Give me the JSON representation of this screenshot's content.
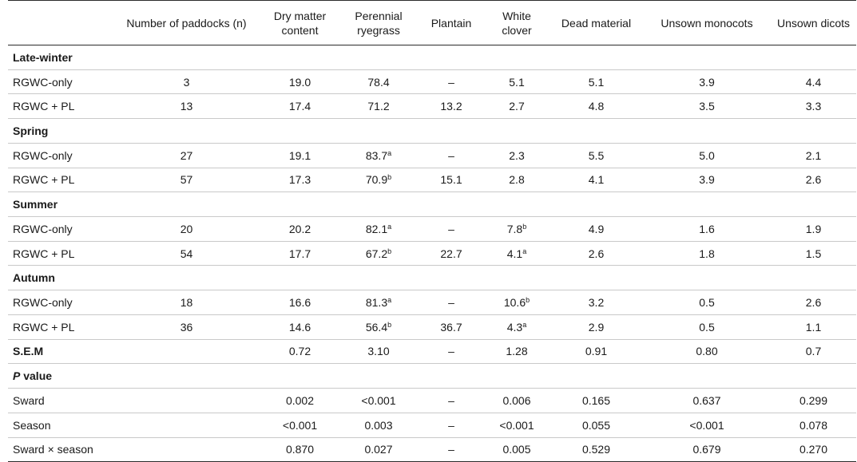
{
  "columns": [
    "",
    "Number of paddocks (n)",
    "Dry matter content",
    "Perennial ryegrass",
    "Plantain",
    "White clover",
    "Dead material",
    "Unsown monocots",
    "Unsown dicots"
  ],
  "sections": [
    {
      "title": "Late-winter",
      "rows": [
        {
          "label": "RGWC-only",
          "n": "3",
          "dm": "19.0",
          "prg": "78.4",
          "prg_sup": "",
          "pl": "–",
          "wc": "5.1",
          "wc_sup": "",
          "dead": "5.1",
          "umono": "3.9",
          "udicot": "4.4"
        },
        {
          "label": "RGWC + PL",
          "n": "13",
          "dm": "17.4",
          "prg": "71.2",
          "prg_sup": "",
          "pl": "13.2",
          "wc": "2.7",
          "wc_sup": "",
          "dead": "4.8",
          "umono": "3.5",
          "udicot": "3.3"
        }
      ]
    },
    {
      "title": "Spring",
      "rows": [
        {
          "label": "RGWC-only",
          "n": "27",
          "dm": "19.1",
          "prg": "83.7",
          "prg_sup": "a",
          "pl": "–",
          "wc": "2.3",
          "wc_sup": "",
          "dead": "5.5",
          "umono": "5.0",
          "udicot": "2.1"
        },
        {
          "label": "RGWC + PL",
          "n": "57",
          "dm": "17.3",
          "prg": "70.9",
          "prg_sup": "b",
          "pl": "15.1",
          "wc": "2.8",
          "wc_sup": "",
          "dead": "4.1",
          "umono": "3.9",
          "udicot": "2.6"
        }
      ]
    },
    {
      "title": "Summer",
      "rows": [
        {
          "label": "RGWC-only",
          "n": "20",
          "dm": "20.2",
          "prg": "82.1",
          "prg_sup": "a",
          "pl": "–",
          "wc": "7.8",
          "wc_sup": "b",
          "dead": "4.9",
          "umono": "1.6",
          "udicot": "1.9"
        },
        {
          "label": "RGWC + PL",
          "n": "54",
          "dm": "17.7",
          "prg": "67.2",
          "prg_sup": "b",
          "pl": "22.7",
          "wc": "4.1",
          "wc_sup": "a",
          "dead": "2.6",
          "umono": "1.8",
          "udicot": "1.5"
        }
      ]
    },
    {
      "title": "Autumn",
      "rows": [
        {
          "label": "RGWC-only",
          "n": "18",
          "dm": "16.6",
          "prg": "81.3",
          "prg_sup": "a",
          "pl": "–",
          "wc": "10.6",
          "wc_sup": "b",
          "dead": "3.2",
          "umono": "0.5",
          "udicot": "2.6"
        },
        {
          "label": "RGWC + PL",
          "n": "36",
          "dm": "14.6",
          "prg": "56.4",
          "prg_sup": "b",
          "pl": "36.7",
          "wc": "4.3",
          "wc_sup": "a",
          "dead": "2.9",
          "umono": "0.5",
          "udicot": "1.1"
        }
      ]
    }
  ],
  "sem": {
    "label": "S.E.M",
    "n": "",
    "dm": "0.72",
    "prg": "3.10",
    "pl": "–",
    "wc": "1.28",
    "dead": "0.91",
    "umono": "0.80",
    "udicot": "0.7"
  },
  "pvalue": {
    "title_italic": "P",
    "title_rest": " value",
    "rows": [
      {
        "label": "Sward",
        "n": "",
        "dm": "0.002",
        "prg": "<0.001",
        "pl": "–",
        "wc": "0.006",
        "dead": "0.165",
        "umono": "0.637",
        "udicot": "0.299"
      },
      {
        "label": "Season",
        "n": "",
        "dm": "<0.001",
        "prg": "0.003",
        "pl": "–",
        "wc": "<0.001",
        "dead": "0.055",
        "umono": "<0.001",
        "udicot": "0.078"
      },
      {
        "label": "Sward × season",
        "n": "",
        "dm": "0.870",
        "prg": "0.027",
        "pl": "–",
        "wc": "0.005",
        "dead": "0.529",
        "umono": "0.679",
        "udicot": "0.270"
      }
    ]
  }
}
